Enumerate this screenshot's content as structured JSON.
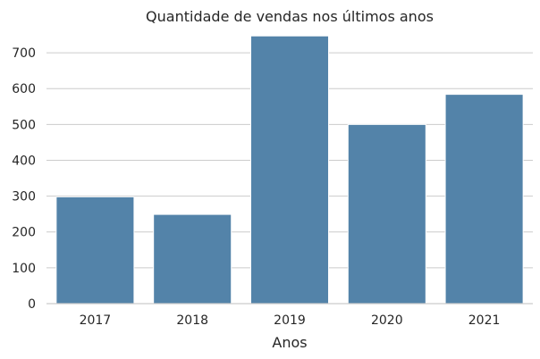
{
  "chart_data": {
    "type": "bar",
    "title": "Quantidade de vendas nos últimos anos",
    "xlabel": "Anos",
    "ylabel": "",
    "categories": [
      "2017",
      "2018",
      "2019",
      "2020",
      "2021"
    ],
    "values": [
      298,
      249,
      747,
      500,
      584
    ],
    "ylim": [
      0,
      760
    ],
    "yticks": [
      0,
      100,
      200,
      300,
      400,
      500,
      600,
      700
    ],
    "grid": "horizontal",
    "colors": {
      "bar": "#5383a9",
      "bar_edge": "#ffffff",
      "grid": "#cccccc",
      "text": "#262626"
    }
  }
}
